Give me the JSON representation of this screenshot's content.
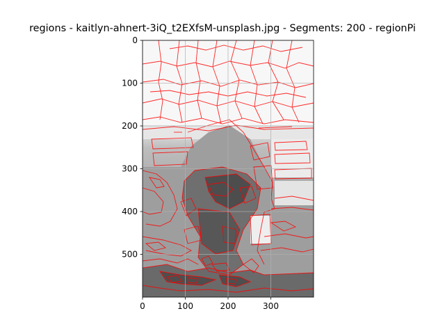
{
  "chart_data": {
    "type": "image",
    "title": "regions - kaitlyn-ahnert-3iQ_t2EXfsM-unsplash.jpg - Segments: 200 - regionPi",
    "image_width": 400,
    "image_height": 600,
    "x_ticks": [
      0,
      100,
      200,
      300
    ],
    "y_ticks": [
      0,
      100,
      200,
      300,
      400,
      500
    ],
    "xlim": [
      0,
      400
    ],
    "ylim": [
      600,
      0
    ],
    "grid": true,
    "segments": 200,
    "boundary_color": "#ff0000",
    "background_top_color": "#f6f6f6",
    "background_bottom_color": "#8c8c8c"
  }
}
